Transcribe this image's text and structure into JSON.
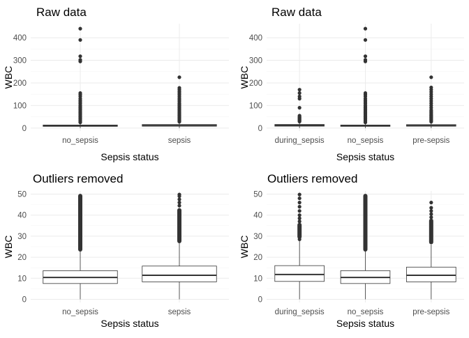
{
  "chart_data": [
    {
      "id": "raw-2",
      "type": "box",
      "title": "Raw data",
      "xlabel": "Sepsis status",
      "ylabel": "WBC",
      "ylim": [
        -13,
        462
      ],
      "yticks": [
        0,
        100,
        200,
        300,
        400
      ],
      "grid": true,
      "categories": [
        "no_sepsis",
        "sepsis"
      ],
      "boxes": [
        {
          "q1": 7.5,
          "median": 10.4,
          "q3": 13.6,
          "whisker_low": 0,
          "whisker_high": 22.8,
          "outliers": [
            25,
            30,
            35,
            40,
            45,
            50,
            55,
            60,
            65,
            70,
            75,
            80,
            85,
            90,
            95,
            100,
            108,
            115,
            122,
            130,
            140,
            148,
            155,
            295,
            302,
            318,
            390,
            440
          ]
        },
        {
          "q1": 8.3,
          "median": 11.4,
          "q3": 15.8,
          "whisker_low": 0,
          "whisker_high": 26.8,
          "outliers": [
            28,
            32,
            36,
            40,
            44,
            48,
            52,
            56,
            60,
            65,
            70,
            75,
            80,
            85,
            90,
            95,
            100,
            105,
            110,
            118,
            125,
            132,
            140,
            148,
            155,
            162,
            170,
            178,
            225
          ]
        }
      ]
    },
    {
      "id": "raw-3",
      "type": "box",
      "title": "Raw data",
      "xlabel": "Sepsis status",
      "ylabel": "WBC",
      "ylim": [
        -13,
        462
      ],
      "yticks": [
        0,
        100,
        200,
        300,
        400
      ],
      "grid": true,
      "categories": [
        "during_sepsis",
        "no_sepsis",
        "pre-sepsis"
      ],
      "boxes": [
        {
          "q1": 8.5,
          "median": 11.8,
          "q3": 16.0,
          "whisker_low": 0,
          "whisker_high": 27.8,
          "outliers": [
            29,
            32,
            35,
            38,
            41,
            44,
            47,
            50,
            55,
            90,
            130,
            140,
            155,
            170
          ]
        },
        {
          "q1": 7.5,
          "median": 10.4,
          "q3": 13.6,
          "whisker_low": 0,
          "whisker_high": 22.8,
          "outliers": [
            25,
            30,
            35,
            40,
            45,
            50,
            55,
            60,
            65,
            70,
            75,
            80,
            85,
            90,
            95,
            100,
            108,
            115,
            122,
            130,
            140,
            148,
            155,
            295,
            302,
            318,
            390,
            440
          ]
        },
        {
          "q1": 8.3,
          "median": 11.4,
          "q3": 15.3,
          "whisker_low": 0,
          "whisker_high": 26.0,
          "outliers": [
            28,
            32,
            36,
            40,
            44,
            48,
            52,
            56,
            60,
            65,
            70,
            75,
            80,
            90,
            100,
            110,
            120,
            130,
            140,
            150,
            160,
            170,
            180,
            225
          ]
        }
      ]
    },
    {
      "id": "clean-2",
      "type": "box",
      "title": "Outliers removed",
      "xlabel": "Sepsis status",
      "ylabel": "WBC",
      "ylim": [
        -1.5,
        51.5
      ],
      "yticks": [
        0,
        10,
        20,
        30,
        40,
        50
      ],
      "grid": true,
      "categories": [
        "no_sepsis",
        "sepsis"
      ],
      "boxes": [
        {
          "q1": 7.5,
          "median": 10.4,
          "q3": 13.6,
          "whisker_low": 0,
          "whisker_high": 22.8,
          "outlier_band": [
            23.0,
            49.8
          ],
          "outliers": []
        },
        {
          "q1": 8.3,
          "median": 11.4,
          "q3": 15.8,
          "whisker_low": 0,
          "whisker_high": 26.8,
          "outlier_band": [
            27.0,
            43.0
          ],
          "outliers": [
            44.5,
            46.0,
            47.5,
            49.0,
            49.8
          ]
        }
      ]
    },
    {
      "id": "clean-3",
      "type": "box",
      "title": "Outliers removed",
      "xlabel": "Sepsis status",
      "ylabel": "WBC",
      "ylim": [
        -1.5,
        51.5
      ],
      "yticks": [
        0,
        10,
        20,
        30,
        40,
        50
      ],
      "grid": true,
      "categories": [
        "during_sepsis",
        "no_sepsis",
        "pre-sepsis"
      ],
      "boxes": [
        {
          "q1": 8.5,
          "median": 11.8,
          "q3": 16.0,
          "whisker_low": 0,
          "whisker_high": 27.8,
          "outlier_band": [
            29.0,
            36.0
          ],
          "outliers": [
            28.5,
            37.0,
            38.5,
            40.0,
            42.0,
            44.0,
            46.0,
            48.0,
            49.8
          ]
        },
        {
          "q1": 7.5,
          "median": 10.4,
          "q3": 13.6,
          "whisker_low": 0,
          "whisker_high": 22.8,
          "outlier_band": [
            23.0,
            49.8
          ],
          "outliers": []
        },
        {
          "q1": 8.3,
          "median": 11.4,
          "q3": 15.3,
          "whisker_low": 0,
          "whisker_high": 26.0,
          "outlier_band": [
            26.5,
            38.0
          ],
          "outliers": [
            39.0,
            40.5,
            42.0,
            43.5,
            46.0
          ]
        }
      ]
    }
  ]
}
